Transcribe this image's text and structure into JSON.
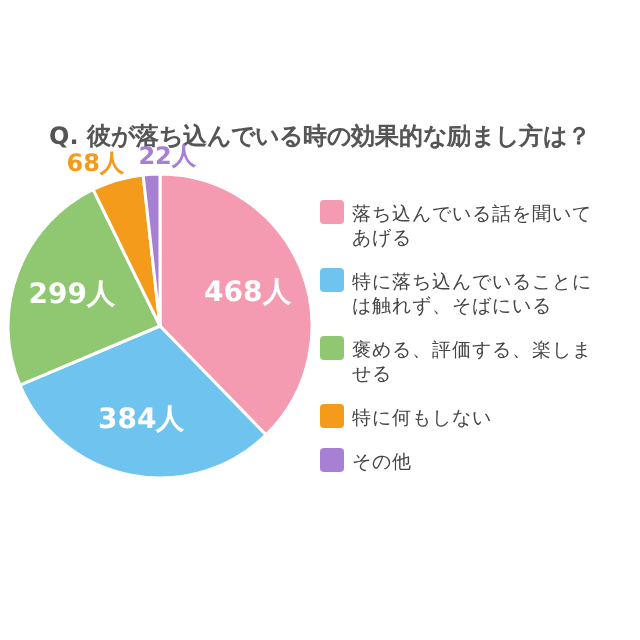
{
  "chart_data": {
    "type": "pie",
    "title": "Q. 彼が落ち込んでいる時の効果的な励まし方は？",
    "categories": [
      "落ち込んでいる話を聞いてあげる",
      "特に落ち込んでいることには触れず、そばにいる",
      "褒める、評価する、楽しませる",
      "特に何もしない",
      "その他"
    ],
    "values": [
      468,
      384,
      299,
      68,
      22
    ],
    "colors": [
      "#f59bb1",
      "#6ec4ee",
      "#8fc870",
      "#f49b1c",
      "#a77fd3"
    ],
    "value_labels": [
      "468人",
      "384人",
      "299人",
      "68人",
      "22人"
    ],
    "legend": "right"
  }
}
